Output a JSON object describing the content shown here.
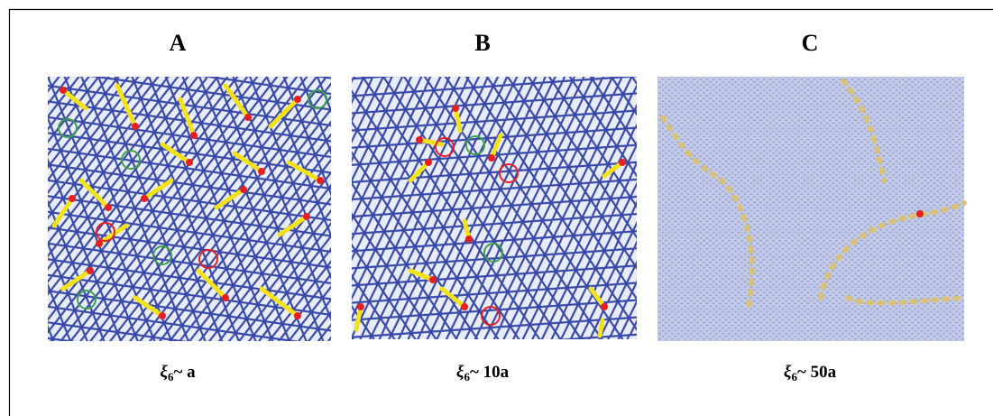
{
  "panels": [
    {
      "label": "A",
      "caption": {
        "symbol": "ξ",
        "subscript": "6",
        "text": "~ a"
      }
    },
    {
      "label": "B",
      "caption": {
        "symbol": "ξ",
        "subscript": "6",
        "text": "~ 10a"
      }
    },
    {
      "label": "C",
      "caption": {
        "symbol": "ξ",
        "subscript": "6",
        "text": "~ 50a"
      }
    }
  ]
}
